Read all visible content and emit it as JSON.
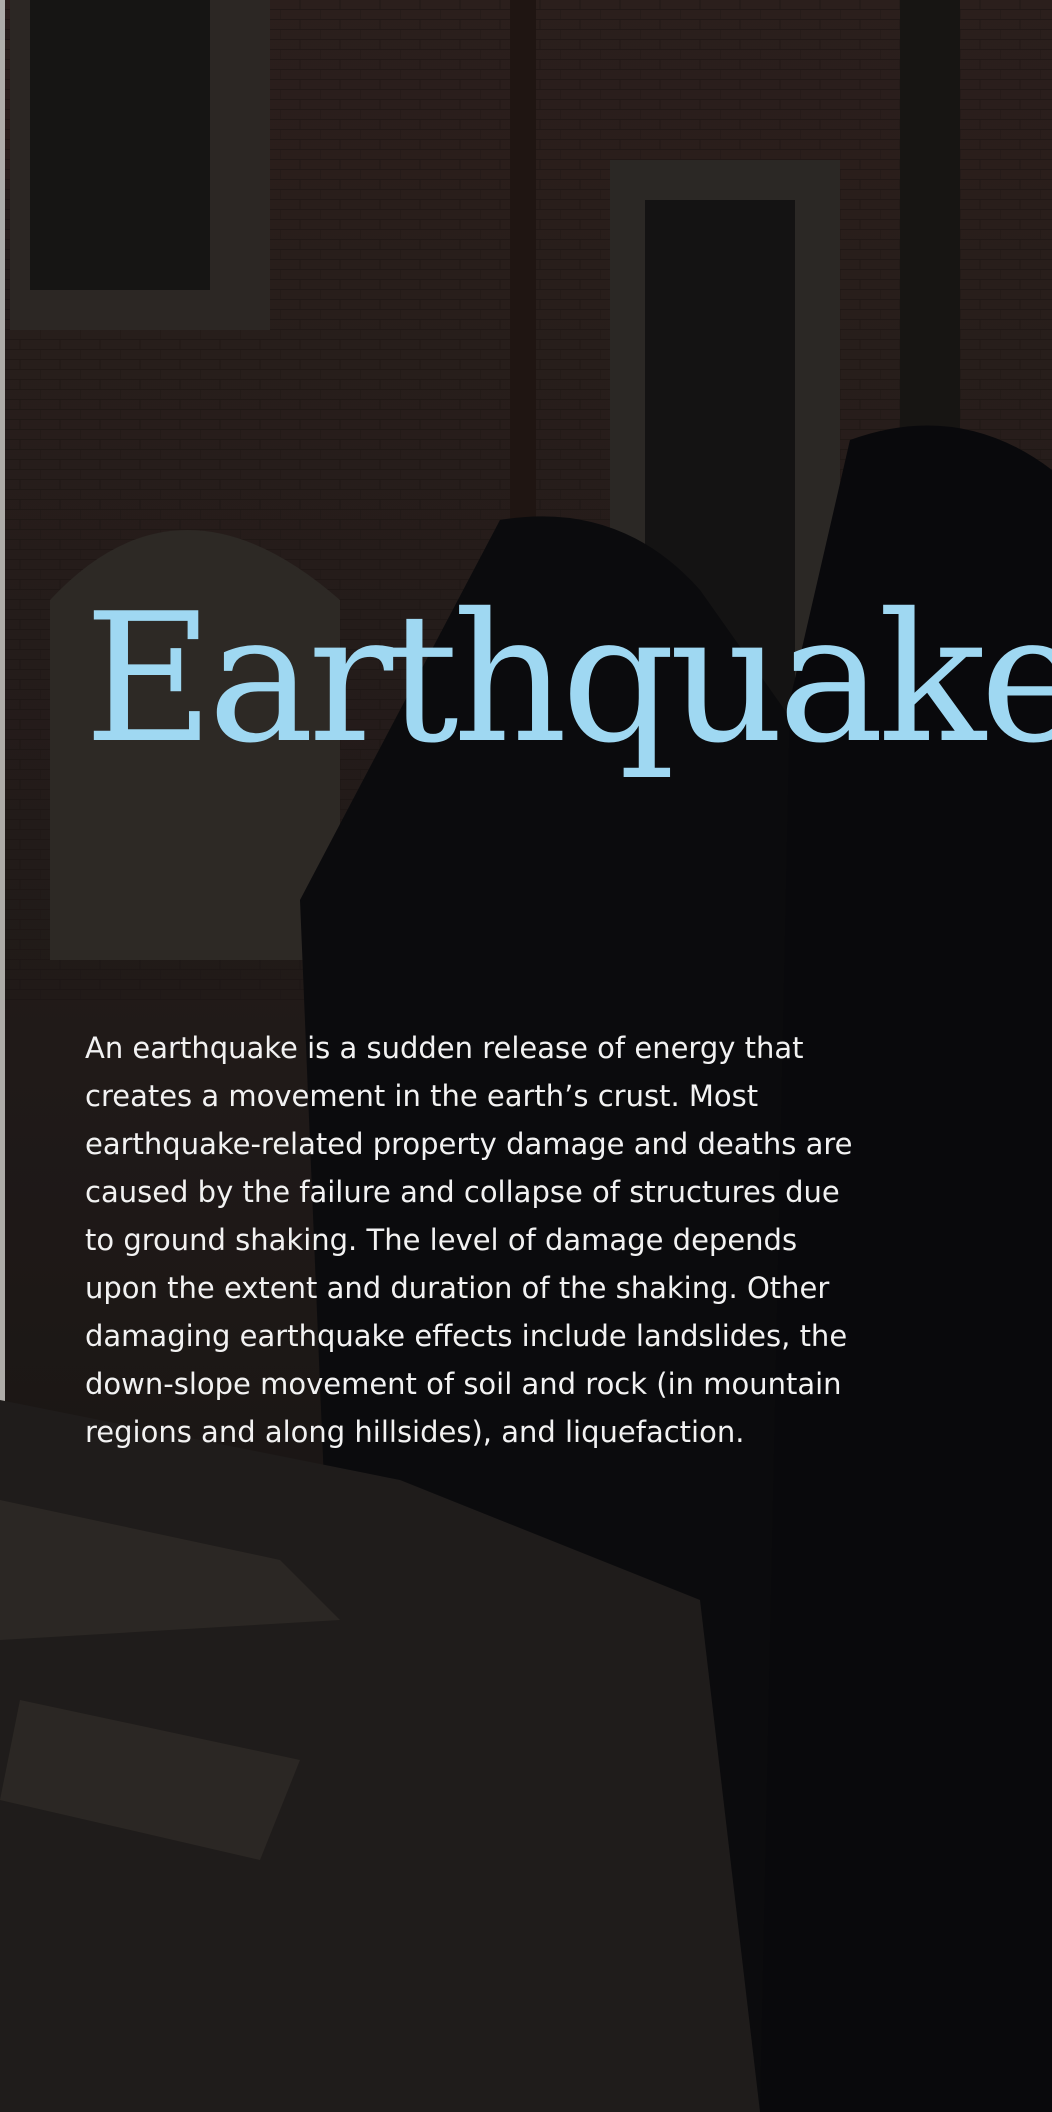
{
  "title": "Earthquake",
  "body": {
    "lines": [
      "An earthquake is a sudden release of energy that",
      "creates a movement in the earth’s crust. Most",
      "earthquake-related property damage and deaths are",
      "caused by the failure and collapse of structures due",
      "to ground shaking. The level of damage depends",
      "upon the extent and duration of the shaking. Other",
      "damaging earthquake effects include landslides, the",
      "down-slope movement of soil and rock (in mountain",
      "regions and along hillsides), and liquefaction."
    ]
  }
}
